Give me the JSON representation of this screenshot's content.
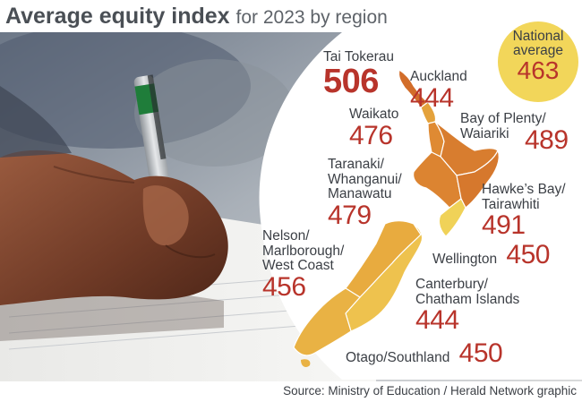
{
  "title": {
    "bold": "Average equity index",
    "light": "for 2023 by region"
  },
  "national": {
    "label": "National\naverage",
    "value": "463"
  },
  "regions": [
    {
      "id": "tai-tokerau",
      "name": "Tai Tokerau",
      "value": "506",
      "color": "#d26d2a"
    },
    {
      "id": "auckland",
      "name": "Auckland",
      "value": "444",
      "color": "#e4a23b"
    },
    {
      "id": "waikato",
      "name": "Waikato",
      "value": "476",
      "color": "#df8a33"
    },
    {
      "id": "bay-of-plenty",
      "name": "Bay of Plenty/\nWaiariki",
      "value": "489",
      "color": "#d87d2f"
    },
    {
      "id": "taranaki",
      "name": "Taranaki/\nWhanganui/\nManawatu",
      "value": "479",
      "color": "#dc8431"
    },
    {
      "id": "hawkes-bay",
      "name": "Hawke’s Bay/\nTairawhiti",
      "value": "491",
      "color": "#d6782d"
    },
    {
      "id": "wellington",
      "name": "Wellington",
      "value": "450",
      "color": "#f0d258"
    },
    {
      "id": "nelson",
      "name": "Nelson/\nMarlborough/\nWest Coast",
      "value": "456",
      "color": "#e8ab3f"
    },
    {
      "id": "canterbury",
      "name": "Canterbury/\nChatham Islands",
      "value": "444",
      "color": "#eec24e"
    },
    {
      "id": "otago",
      "name": "Otago/Southland",
      "value": "450",
      "color": "#e9b244"
    }
  ],
  "colors": {
    "value": "#b8342b",
    "text": "#3b3f45",
    "national_bg": "#f2d65a"
  },
  "source": "Source: Ministry of Education / Herald Network graphic"
}
